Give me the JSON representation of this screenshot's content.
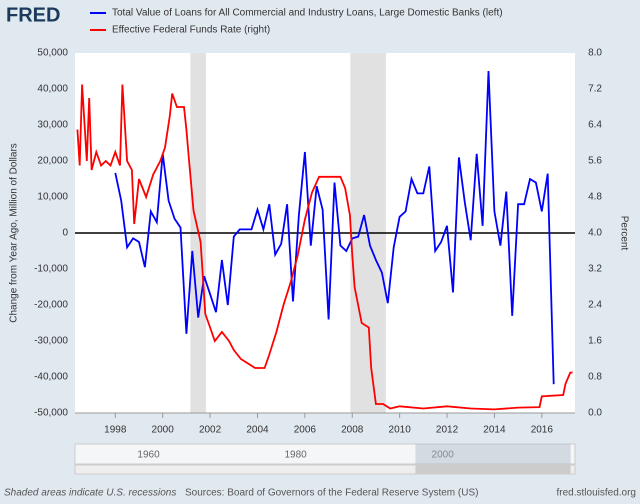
{
  "logo": "FRED",
  "chart_data": {
    "type": "line",
    "ylabel": "Change from Year Ago, Million of Dollars",
    "y2label": "Percent",
    "xlim": [
      1996.3,
      2017.4
    ],
    "xticks": [
      1998,
      2000,
      2002,
      2004,
      2006,
      2008,
      2010,
      2012,
      2014,
      2016
    ],
    "ylim": [
      -50000,
      50000
    ],
    "yticks": [
      {
        "value": -50000,
        "label": "-50,000"
      },
      {
        "value": -40000,
        "label": "-40,000"
      },
      {
        "value": -30000,
        "label": "-30,000"
      },
      {
        "value": -20000,
        "label": "-20,000"
      },
      {
        "value": -10000,
        "label": "-10,000"
      },
      0,
      {
        "value": 10000,
        "label": "10,000"
      },
      {
        "value": 20000,
        "label": "20,000"
      },
      {
        "value": 30000,
        "label": "30,000"
      },
      {
        "value": 40000,
        "label": "40,000"
      },
      {
        "value": 50000,
        "label": "50,000"
      }
    ],
    "y2lim": [
      0,
      8
    ],
    "y2ticks": [
      {
        "value": 0,
        "label": "0.0"
      },
      0.8,
      1.6,
      2.4,
      3.2,
      {
        "value": 4,
        "label": "4.0"
      },
      4.8,
      5.6,
      6.4,
      7.2,
      {
        "value": 8,
        "label": "8.0"
      }
    ],
    "recessions": [
      [
        2001.17,
        2001.83
      ],
      [
        2007.92,
        2009.42
      ]
    ],
    "recession_color": "#e1e1e1",
    "series": [
      {
        "name": "Total Value of Loans for All Commercial and Industry Loans, Large Domestic Banks (left)",
        "color": "#0000ff",
        "x": [
          1998,
          1998.25,
          1998.5,
          1998.75,
          1999,
          1999.25,
          1999.5,
          1999.75,
          2000,
          2000.25,
          2000.5,
          2000.75,
          2001,
          2001.25,
          2001.5,
          2001.75,
          2002,
          2002.25,
          2002.5,
          2002.75,
          2003,
          2003.25,
          2003.5,
          2003.75,
          2004,
          2004.25,
          2004.5,
          2004.75,
          2005,
          2005.25,
          2005.5,
          2005.75,
          2006,
          2006.25,
          2006.5,
          2006.75,
          2007,
          2007.25,
          2007.5,
          2007.75,
          2008,
          2008.25,
          2008.5,
          2008.75,
          2009,
          2009.25,
          2009.5,
          2009.75,
          2010,
          2010.25,
          2010.5,
          2010.75,
          2011,
          2011.25,
          2011.5,
          2011.75,
          2012,
          2012.25,
          2012.5,
          2012.75,
          2013,
          2013.25,
          2013.5,
          2013.75,
          2014,
          2014.25,
          2014.5,
          2014.75,
          2015,
          2015.25,
          2015.5,
          2015.75,
          2016,
          2016.25,
          2016.5
        ],
        "values": [
          16700,
          9000,
          -4000,
          -1500,
          -2500,
          -9500,
          6000,
          3000,
          22000,
          9000,
          4000,
          1500,
          -28000,
          -5000,
          -23500,
          -12000,
          -17000,
          -22000,
          -7500,
          -20000,
          -1000,
          1000,
          1000,
          1000,
          6500,
          1000,
          8000,
          -6000,
          -3000,
          8000,
          -19000,
          5000,
          22500,
          -3500,
          13000,
          6500,
          -24000,
          14000,
          -3500,
          -5000,
          -1500,
          -1000,
          5000,
          -3500,
          -7500,
          -11000,
          -19500,
          -4000,
          4500,
          6000,
          15000,
          11000,
          11000,
          18500,
          -5000,
          -2500,
          2000,
          -16500,
          21000,
          8500,
          -2000,
          22000,
          2000,
          45000,
          6000,
          -3500,
          11500,
          -23000,
          8000,
          8000,
          15000,
          14000,
          6000,
          16500,
          -42000
        ]
      },
      {
        "name": "Effective Federal Funds Rate (right)",
        "color": "#ff0000",
        "axis": "y2",
        "x": [
          1996.4,
          1996.5,
          1996.6,
          1996.8,
          1996.9,
          1997.0,
          1997.2,
          1997.4,
          1997.6,
          1997.8,
          1998.0,
          1998.2,
          1998.3,
          1998.5,
          1998.7,
          1998.8,
          1999.0,
          1999.3,
          1999.6,
          1999.9,
          2000.1,
          2000.3,
          2000.4,
          2000.6,
          2000.9,
          2001.0,
          2001.1,
          2001.3,
          2001.6,
          2001.8,
          2002.0,
          2002.2,
          2002.5,
          2002.8,
          2003.0,
          2003.3,
          2003.6,
          2003.9,
          2004.3,
          2004.5,
          2004.8,
          2005.1,
          2005.4,
          2005.7,
          2006.0,
          2006.3,
          2006.6,
          2007.0,
          2007.5,
          2007.7,
          2007.9,
          2008.0,
          2008.1,
          2008.4,
          2008.7,
          2008.8,
          2009.0,
          2009.3,
          2009.6,
          2010.0,
          2011.0,
          2012.0,
          2013.0,
          2014.0,
          2015.0,
          2015.9,
          2016.0,
          2016.9,
          2017.0,
          2017.2,
          2017.3
        ],
        "values": [
          6.3,
          5.5,
          7.3,
          5.6,
          7.0,
          5.4,
          5.8,
          5.5,
          5.6,
          5.5,
          5.8,
          5.5,
          7.3,
          5.6,
          5.4,
          4.2,
          5.2,
          4.8,
          5.3,
          5.6,
          5.9,
          6.6,
          7.1,
          6.8,
          6.8,
          6.3,
          5.7,
          4.5,
          3.8,
          2.2,
          1.9,
          1.6,
          1.8,
          1.6,
          1.4,
          1.2,
          1.1,
          1.0,
          1.0,
          1.3,
          1.8,
          2.4,
          2.9,
          3.5,
          4.3,
          4.9,
          5.25,
          5.25,
          5.25,
          5.0,
          4.4,
          3.5,
          2.8,
          2.0,
          1.9,
          1.0,
          0.2,
          0.2,
          0.1,
          0.15,
          0.1,
          0.15,
          0.1,
          0.08,
          0.12,
          0.13,
          0.37,
          0.4,
          0.65,
          0.9,
          0.9
        ]
      }
    ],
    "navigator": {
      "xlim": [
        1950,
        2018
      ],
      "xticks": [
        1960,
        1980,
        2000
      ]
    }
  },
  "footer": {
    "note": "Shaded areas indicate U.S. recessions",
    "source": "Sources: Board of Governors of the Federal Reserve System (US)",
    "url": "fred.stlouisfed.org"
  }
}
